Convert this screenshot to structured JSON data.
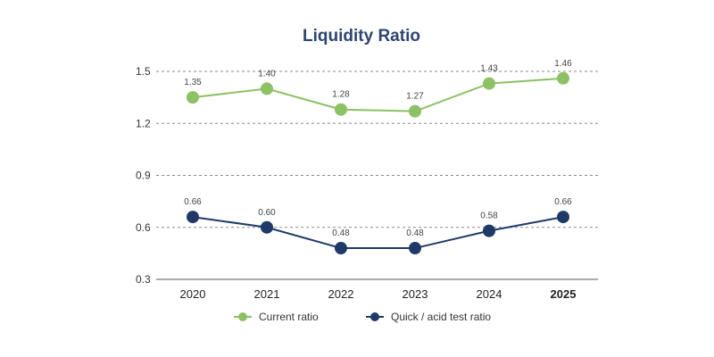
{
  "chart_data": {
    "type": "line",
    "title": "Liquidity Ratio",
    "xlabel": "",
    "ylabel": "",
    "categories": [
      "2020",
      "2021",
      "2022",
      "2023",
      "2024",
      "2025"
    ],
    "highlight_category": "2025",
    "ylim": [
      0.3,
      1.5
    ],
    "yticks": [
      0.3,
      0.6,
      0.9,
      1.2,
      1.5
    ],
    "ytick_labels": [
      "0.3",
      "0.6",
      "0.9",
      "1.2",
      "1.5"
    ],
    "grid": "horizontal-dashed",
    "legend_position": "bottom-center",
    "series": [
      {
        "name": "Current ratio",
        "color": "#8dc165",
        "values": [
          1.35,
          1.4,
          1.28,
          1.27,
          1.43,
          1.46
        ],
        "value_labels": [
          "1.35",
          "1.40",
          "1.28",
          "1.27",
          "1.43",
          "1.46"
        ]
      },
      {
        "name": "Quick / acid test ratio",
        "color": "#1f3a68",
        "values": [
          0.66,
          0.6,
          0.48,
          0.48,
          0.58,
          0.66
        ],
        "value_labels": [
          "0.66",
          "0.60",
          "0.48",
          "0.48",
          "0.58",
          "0.66"
        ]
      }
    ],
    "colors": {
      "title": "#2d4570",
      "axis_text": "#333333",
      "grid": "#8a8a8a",
      "label_text": "#444444"
    }
  }
}
